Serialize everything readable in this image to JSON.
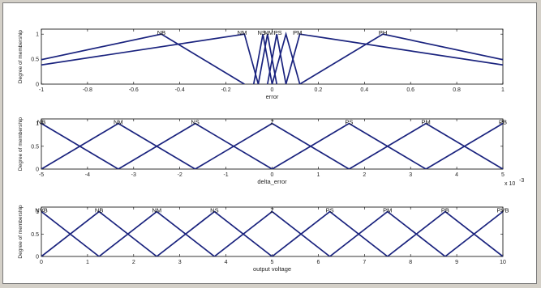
{
  "chart_data": [
    {
      "type": "line",
      "ylabel": "Degree of membership",
      "xlabel": "error",
      "xlim": [
        -1,
        1
      ],
      "ylim": [
        0,
        1.1
      ],
      "xticks": [
        "-1",
        "-0.8",
        "-0.6",
        "-0.4",
        "-0.2",
        "0",
        "0.2",
        "0.4",
        "0.6",
        "0.8",
        "1"
      ],
      "xtick_values": [
        -1,
        -0.8,
        -0.6,
        -0.4,
        -0.2,
        0,
        0.2,
        0.4,
        0.6,
        0.8,
        1
      ],
      "yticks": [
        "0",
        "0.5",
        "1"
      ],
      "ytick_values": [
        0,
        0.5,
        1
      ],
      "exponent": "",
      "series": [
        {
          "name": "NB",
          "x": [
            -1.5,
            -0.48,
            -0.12
          ],
          "y": [
            0,
            1,
            0
          ],
          "label_x": -0.48
        },
        {
          "name": "NM",
          "x": [
            -1.55,
            -0.12,
            -0.06
          ],
          "y": [
            0,
            1,
            0
          ],
          "label_x": -0.13
        },
        {
          "name": "NS",
          "x": [
            -0.08,
            -0.04,
            0.0
          ],
          "y": [
            0,
            1,
            0
          ],
          "label_x": -0.045
        },
        {
          "name": "NM",
          "x": [
            -0.06,
            -0.02,
            0.02
          ],
          "y": [
            0,
            1,
            0
          ],
          "label_x": -0.015
        },
        {
          "name": "PS",
          "x": [
            -0.02,
            0.02,
            0.06
          ],
          "y": [
            0,
            1,
            0
          ],
          "label_x": 0.025
        },
        {
          "name": "PM",
          "x": [
            0.0,
            0.06,
            0.12
          ],
          "y": [
            0,
            1,
            0
          ],
          "label_x": 0.11
        },
        {
          "name": "",
          "x": [
            0.06,
            0.12,
            1.55
          ],
          "y": [
            0,
            1,
            0
          ],
          "label_x": null
        },
        {
          "name": "PH",
          "x": [
            0.12,
            0.48,
            1.5
          ],
          "y": [
            0,
            1,
            0
          ],
          "label_x": 0.48
        }
      ]
    },
    {
      "type": "line",
      "ylabel": "Degree of membership",
      "xlabel": "delta_error",
      "xlim": [
        -5,
        5
      ],
      "ylim": [
        0,
        1.1
      ],
      "xticks": [
        "-5",
        "-4",
        "-3",
        "-2",
        "-1",
        "0",
        "1",
        "2",
        "3",
        "4",
        "5"
      ],
      "xtick_values": [
        -5,
        -4,
        -3,
        -2,
        -1,
        0,
        1,
        2,
        3,
        4,
        5
      ],
      "yticks": [
        "0",
        "0.5",
        "1"
      ],
      "ytick_values": [
        0,
        0.5,
        1
      ],
      "exponent": "x 10",
      "exponent_power": "-3",
      "series": [
        {
          "name": "NB",
          "x": [
            -6.667,
            -5,
            -3.333
          ],
          "y": [
            0,
            1,
            0
          ],
          "label_x": -5
        },
        {
          "name": "NM",
          "x": [
            -5,
            -3.333,
            -1.667
          ],
          "y": [
            0,
            1,
            0
          ],
          "label_x": -3.333
        },
        {
          "name": "NS",
          "x": [
            -3.333,
            -1.667,
            0
          ],
          "y": [
            0,
            1,
            0
          ],
          "label_x": -1.667
        },
        {
          "name": "Z",
          "x": [
            -1.667,
            0,
            1.667
          ],
          "y": [
            0,
            1,
            0
          ],
          "label_x": 0
        },
        {
          "name": "PS",
          "x": [
            0,
            1.667,
            3.333
          ],
          "y": [
            0,
            1,
            0
          ],
          "label_x": 1.667
        },
        {
          "name": "PM",
          "x": [
            1.667,
            3.333,
            5
          ],
          "y": [
            0,
            1,
            0
          ],
          "label_x": 3.333
        },
        {
          "name": "PB",
          "x": [
            3.333,
            5,
            6.667
          ],
          "y": [
            0,
            1,
            0
          ],
          "label_x": 5
        }
      ]
    },
    {
      "type": "line",
      "ylabel": "Degree of membership",
      "xlabel": "output voltage",
      "xlim": [
        0,
        10
      ],
      "ylim": [
        0,
        1.1
      ],
      "xticks": [
        "0",
        "1",
        "2",
        "3",
        "4",
        "5",
        "6",
        "7",
        "8",
        "9",
        "10"
      ],
      "xtick_values": [
        0,
        1,
        2,
        3,
        4,
        5,
        6,
        7,
        8,
        9,
        10
      ],
      "yticks": [
        "0",
        "0.5",
        "1"
      ],
      "ytick_values": [
        0,
        0.5,
        1
      ],
      "exponent": "",
      "series": [
        {
          "name": "NVB",
          "x": [
            -1.25,
            0,
            1.25
          ],
          "y": [
            0,
            1,
            0
          ],
          "label_x": 0
        },
        {
          "name": "NB",
          "x": [
            0,
            1.25,
            2.5
          ],
          "y": [
            0,
            1,
            0
          ],
          "label_x": 1.25
        },
        {
          "name": "NM",
          "x": [
            1.25,
            2.5,
            3.75
          ],
          "y": [
            0,
            1,
            0
          ],
          "label_x": 2.5
        },
        {
          "name": "NS",
          "x": [
            2.5,
            3.75,
            5
          ],
          "y": [
            0,
            1,
            0
          ],
          "label_x": 3.75
        },
        {
          "name": "Z",
          "x": [
            3.75,
            5,
            6.25
          ],
          "y": [
            0,
            1,
            0
          ],
          "label_x": 5
        },
        {
          "name": "PS",
          "x": [
            5,
            6.25,
            7.5
          ],
          "y": [
            0,
            1,
            0
          ],
          "label_x": 6.25
        },
        {
          "name": "PM",
          "x": [
            6.25,
            7.5,
            8.75
          ],
          "y": [
            0,
            1,
            0
          ],
          "label_x": 7.5
        },
        {
          "name": "PB",
          "x": [
            7.5,
            8.75,
            10
          ],
          "y": [
            0,
            1,
            0
          ],
          "label_x": 8.75
        },
        {
          "name": "PVB",
          "x": [
            8.75,
            10,
            11.25
          ],
          "y": [
            0,
            1,
            0
          ],
          "label_x": 10
        }
      ]
    }
  ],
  "colors": {
    "curve": "#1a237e",
    "background": "#ffffff",
    "border": "#7a7a7a"
  }
}
